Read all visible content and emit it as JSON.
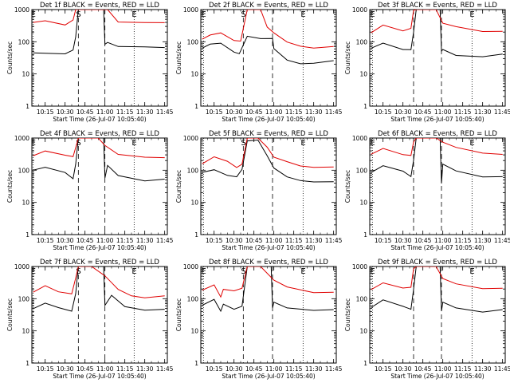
{
  "chart_data": [
    {
      "type": "line",
      "title": "Det 1f BLACK = Events, RED = LLD",
      "xlabel": "Start Time (26-Jul-07 10:05:40)",
      "ylabel": "Counts/sec",
      "scale": "log",
      "ylim": [
        1,
        1000
      ],
      "xlim": [
        "10:05",
        "11:47"
      ],
      "x_ticks": [
        "10:15",
        "10:30",
        "10:45",
        "11:00",
        "11:15",
        "11:30",
        "11:45"
      ],
      "y_ticks": [
        "1",
        "10",
        "100",
        "1000"
      ],
      "markers": [
        {
          "label": "E",
          "x": "10:06",
          "style": "dotted"
        },
        {
          "label": "S",
          "x": "10:40",
          "style": "dashed"
        },
        {
          "label": "",
          "x": "11:00",
          "style": "dashed"
        },
        {
          "label": "E",
          "x": "11:22",
          "style": "dotted"
        }
      ],
      "series": [
        {
          "color": "#000000",
          "x": [
            "10:06",
            "10:15",
            "10:30",
            "10:36",
            "10:38",
            "10:40",
            "10:59",
            "11:00",
            "11:02",
            "11:10",
            "11:30",
            "11:45"
          ],
          "y": [
            45,
            42,
            40,
            55,
            150,
            1000,
            1000,
            80,
            90,
            70,
            72,
            70
          ]
        },
        {
          "color": "#e00000",
          "x": [
            "10:06",
            "10:15",
            "10:30",
            "10:36",
            "10:38",
            "10:40",
            "11:00",
            "11:02",
            "11:10",
            "11:30",
            "11:45"
          ],
          "y": [
            380,
            450,
            350,
            500,
            1000,
            1000,
            1000,
            1000,
            430,
            420,
            400
          ]
        }
      ]
    },
    {
      "type": "line",
      "title": "Det 2f BLACK = Events, RED = LLD",
      "xlabel": "Start Time (26-Jul-07 10:05:40)",
      "ylabel": "Counts/sec",
      "scale": "log",
      "ylim": [
        1,
        1000
      ],
      "xlim": [
        "10:05",
        "11:47"
      ],
      "x_ticks": [
        "10:15",
        "10:30",
        "10:45",
        "11:00",
        "11:15",
        "11:30",
        "11:45"
      ],
      "y_ticks": [
        "1",
        "10",
        "100",
        "1000"
      ],
      "markers": [
        {
          "label": "E",
          "x": "10:07",
          "style": "dotted"
        },
        {
          "label": "S",
          "x": "10:37",
          "style": "dashed"
        },
        {
          "label": "",
          "x": "10:59",
          "style": "dashed"
        },
        {
          "label": "E",
          "x": "11:22",
          "style": "dotted"
        }
      ],
      "series": [
        {
          "color": "#000000",
          "x": [
            "10:06",
            "10:12",
            "10:20",
            "10:30",
            "10:34",
            "10:40",
            "10:50",
            "10:59",
            "11:00",
            "11:10",
            "11:20",
            "11:30",
            "11:45"
          ],
          "y": [
            60,
            80,
            90,
            50,
            45,
            150,
            120,
            120,
            60,
            28,
            22,
            22,
            25
          ]
        },
        {
          "color": "#e00000",
          "x": [
            "10:06",
            "10:12",
            "10:20",
            "10:30",
            "10:35",
            "10:40",
            "10:50",
            "10:55",
            "11:00",
            "11:10",
            "11:20",
            "11:30",
            "11:45"
          ],
          "y": [
            120,
            170,
            200,
            110,
            100,
            1000,
            1000,
            300,
            200,
            100,
            70,
            60,
            70
          ]
        }
      ]
    },
    {
      "type": "line",
      "title": "Det 3f BLACK = Events, RED = LLD",
      "xlabel": "Start Time (26-Jul-07 10:05:40)",
      "ylabel": "Counts/sec",
      "scale": "log",
      "ylim": [
        1,
        1000
      ],
      "xlim": [
        "10:05",
        "11:47"
      ],
      "x_ticks": [
        "10:15",
        "10:30",
        "10:45",
        "11:00",
        "11:15",
        "11:30",
        "11:45"
      ],
      "y_ticks": [
        "1",
        "10",
        "100",
        "1000"
      ],
      "markers": [
        {
          "label": "E",
          "x": "10:07",
          "style": "dotted"
        },
        {
          "label": "",
          "x": "10:38",
          "style": "dashed"
        },
        {
          "label": "",
          "x": "10:59",
          "style": "dashed"
        },
        {
          "label": "E",
          "x": "11:22",
          "style": "dotted"
        }
      ],
      "series": [
        {
          "color": "#000000",
          "x": [
            "10:06",
            "10:15",
            "10:30",
            "10:36",
            "10:38",
            "10:40",
            "10:58",
            "10:59",
            "11:00",
            "11:10",
            "11:30",
            "11:45"
          ],
          "y": [
            60,
            90,
            60,
            60,
            200,
            1000,
            1000,
            50,
            60,
            40,
            35,
            40
          ]
        },
        {
          "color": "#e00000",
          "x": [
            "10:06",
            "10:15",
            "10:30",
            "10:36",
            "10:38",
            "10:40",
            "10:55",
            "11:00",
            "11:10",
            "11:30",
            "11:45"
          ],
          "y": [
            200,
            350,
            220,
            250,
            900,
            1000,
            1000,
            400,
            300,
            200,
            200
          ]
        }
      ]
    },
    {
      "type": "line",
      "title": "Det 4f BLACK = Events, RED = LLD",
      "xlabel": "Start Time (26-Jul-07 10:05:40)",
      "ylabel": "Counts/sec",
      "scale": "log",
      "ylim": [
        1,
        1000
      ],
      "xlim": [
        "10:05",
        "11:47"
      ],
      "x_ticks": [
        "10:15",
        "10:30",
        "10:45",
        "11:00",
        "11:15",
        "11:30",
        "11:45"
      ],
      "y_ticks": [
        "1",
        "10",
        "100",
        "1000"
      ],
      "markers": [
        {
          "label": "E",
          "x": "10:06",
          "style": "dotted"
        },
        {
          "label": "S",
          "x": "10:40",
          "style": "dashed"
        },
        {
          "label": "",
          "x": "11:00",
          "style": "dashed"
        },
        {
          "label": "E",
          "x": "11:22",
          "style": "dotted"
        }
      ],
      "series": [
        {
          "color": "#000000",
          "x": [
            "10:06",
            "10:15",
            "10:30",
            "10:36",
            "10:38",
            "10:40",
            "10:59",
            "11:00",
            "11:02",
            "11:10",
            "11:30",
            "11:45"
          ],
          "y": [
            100,
            130,
            90,
            55,
            150,
            1000,
            1000,
            60,
            150,
            70,
            45,
            50
          ]
        },
        {
          "color": "#e00000",
          "x": [
            "10:06",
            "10:15",
            "10:30",
            "10:36",
            "10:38",
            "10:40",
            "10:55",
            "11:00",
            "11:10",
            "11:30",
            "11:45"
          ],
          "y": [
            300,
            400,
            280,
            250,
            500,
            1000,
            1000,
            600,
            300,
            240,
            240
          ]
        }
      ]
    },
    {
      "type": "line",
      "title": "Det 5f BLACK = Events, RED = LLD",
      "xlabel": "Start Time (26-Jul-07 10:05:40)",
      "ylabel": "Counts/sec",
      "scale": "log",
      "ylim": [
        1,
        1000
      ],
      "xlim": [
        "10:05",
        "11:47"
      ],
      "x_ticks": [
        "10:15",
        "10:30",
        "10:45",
        "11:00",
        "11:15",
        "11:30",
        "11:45"
      ],
      "y_ticks": [
        "1",
        "10",
        "100",
        "1000"
      ],
      "markers": [
        {
          "label": "",
          "x": "10:07",
          "style": "dotted"
        },
        {
          "label": "S",
          "x": "10:37",
          "style": "dashed"
        },
        {
          "label": "",
          "x": "10:59",
          "style": "dashed"
        },
        {
          "label": "E",
          "x": "11:22",
          "style": "dotted"
        }
      ],
      "series": [
        {
          "color": "#000000",
          "x": [
            "10:06",
            "10:15",
            "10:25",
            "10:32",
            "10:36",
            "10:40",
            "10:48",
            "10:55",
            "11:00",
            "11:10",
            "11:20",
            "11:30",
            "11:45"
          ],
          "y": [
            90,
            110,
            70,
            60,
            100,
            800,
            900,
            300,
            120,
            60,
            45,
            42,
            45
          ]
        },
        {
          "color": "#e00000",
          "x": [
            "10:06",
            "10:15",
            "10:25",
            "10:32",
            "10:36",
            "10:40",
            "10:48",
            "10:55",
            "11:00",
            "11:10",
            "11:20",
            "11:30",
            "11:45"
          ],
          "y": [
            160,
            250,
            180,
            120,
            160,
            1000,
            1000,
            500,
            240,
            180,
            140,
            130,
            130
          ]
        }
      ]
    },
    {
      "type": "line",
      "title": "Det 6f BLACK = Events, RED = LLD",
      "xlabel": "Start Time (26-Jul-07 10:05:40)",
      "ylabel": "Counts/sec",
      "scale": "log",
      "ylim": [
        1,
        1000
      ],
      "xlim": [
        "10:05",
        "11:47"
      ],
      "x_ticks": [
        "10:15",
        "10:30",
        "10:45",
        "11:00",
        "11:15",
        "11:30",
        "11:45"
      ],
      "y_ticks": [
        "1",
        "10",
        "100",
        "1000"
      ],
      "markers": [
        {
          "label": "E",
          "x": "10:07",
          "style": "dotted"
        },
        {
          "label": "",
          "x": "10:38",
          "style": "dashed"
        },
        {
          "label": "",
          "x": "10:59",
          "style": "dashed"
        },
        {
          "label": "E",
          "x": "11:22",
          "style": "dotted"
        }
      ],
      "series": [
        {
          "color": "#000000",
          "x": [
            "10:06",
            "10:15",
            "10:30",
            "10:36",
            "10:38",
            "10:40",
            "10:58",
            "10:59",
            "11:00",
            "11:10",
            "11:30",
            "11:45"
          ],
          "y": [
            90,
            140,
            90,
            60,
            200,
            1000,
            1000,
            40,
            150,
            90,
            60,
            65
          ]
        },
        {
          "color": "#e00000",
          "x": [
            "10:06",
            "10:15",
            "10:30",
            "10:36",
            "10:38",
            "10:40",
            "10:55",
            "11:00",
            "11:10",
            "11:30",
            "11:45"
          ],
          "y": [
            300,
            450,
            300,
            300,
            800,
            1000,
            1000,
            700,
            500,
            350,
            330
          ]
        }
      ]
    },
    {
      "type": "line",
      "title": "Det 7f BLACK = Events, RED = LLD",
      "xlabel": "Start Time (26-Jul-07 10:05:40)",
      "ylabel": "Counts/sec",
      "scale": "log",
      "ylim": [
        1,
        1000
      ],
      "xlim": [
        "10:05",
        "11:47"
      ],
      "x_ticks": [
        "10:15",
        "10:30",
        "10:45",
        "11:00",
        "11:15",
        "11:30",
        "11:45"
      ],
      "y_ticks": [
        "1",
        "10",
        "100",
        "1000"
      ],
      "markers": [
        {
          "label": "E",
          "x": "10:06",
          "style": "dotted"
        },
        {
          "label": "S",
          "x": "10:40",
          "style": "dashed"
        },
        {
          "label": "",
          "x": "11:00",
          "style": "dashed"
        },
        {
          "label": "E",
          "x": "11:22",
          "style": "dotted"
        }
      ],
      "series": [
        {
          "color": "#000000",
          "x": [
            "10:06",
            "10:15",
            "10:25",
            "10:35",
            "10:38",
            "10:40",
            "10:59",
            "11:00",
            "11:05",
            "11:15",
            "11:30",
            "11:45"
          ],
          "y": [
            50,
            70,
            50,
            40,
            150,
            1000,
            1000,
            60,
            120,
            55,
            45,
            50
          ]
        },
        {
          "color": "#e00000",
          "x": [
            "10:06",
            "10:15",
            "10:25",
            "10:35",
            "10:38",
            "10:40",
            "10:50",
            "11:00",
            "11:10",
            "11:20",
            "11:30",
            "11:45"
          ],
          "y": [
            150,
            250,
            170,
            150,
            450,
            1000,
            1000,
            500,
            200,
            130,
            110,
            120
          ]
        }
      ]
    },
    {
      "type": "line",
      "title": "Det 8f BLACK = Events, RED = LLD",
      "xlabel": "Start Time (26-Jul-07 10:05:40)",
      "ylabel": "Counts/sec",
      "scale": "log",
      "ylim": [
        1,
        1000
      ],
      "xlim": [
        "10:05",
        "11:47"
      ],
      "x_ticks": [
        "10:15",
        "10:30",
        "10:45",
        "11:00",
        "11:15",
        "11:30",
        "11:45"
      ],
      "y_ticks": [
        "1",
        "10",
        "100",
        "1000"
      ],
      "markers": [
        {
          "label": "E",
          "x": "10:07",
          "style": "dotted"
        },
        {
          "label": "S",
          "x": "10:37",
          "style": "dashed"
        },
        {
          "label": "",
          "x": "10:59",
          "style": "dashed"
        },
        {
          "label": "E",
          "x": "11:22",
          "style": "dotted"
        }
      ],
      "series": [
        {
          "color": "#000000",
          "x": [
            "10:06",
            "10:15",
            "10:20",
            "10:22",
            "10:30",
            "10:36",
            "10:40",
            "10:58",
            "10:59",
            "11:00",
            "11:10",
            "11:30",
            "11:45"
          ],
          "y": [
            60,
            90,
            40,
            70,
            50,
            60,
            1000,
            1000,
            50,
            80,
            55,
            45,
            45
          ]
        },
        {
          "color": "#e00000",
          "x": [
            "10:06",
            "10:15",
            "10:20",
            "10:22",
            "10:30",
            "10:36",
            "10:40",
            "10:50",
            "11:00",
            "11:10",
            "11:30",
            "11:45"
          ],
          "y": [
            180,
            280,
            120,
            200,
            170,
            200,
            1000,
            1000,
            400,
            240,
            150,
            150
          ]
        }
      ]
    },
    {
      "type": "line",
      "title": "Det 9f BLACK = Events, RED = LLD",
      "xlabel": "Start Time (26-Jul-07 10:05:40)",
      "ylabel": "Counts/sec",
      "scale": "log",
      "ylim": [
        1,
        1000
      ],
      "xlim": [
        "10:05",
        "11:47"
      ],
      "x_ticks": [
        "10:15",
        "10:30",
        "10:45",
        "11:00",
        "11:15",
        "11:30",
        "11:45"
      ],
      "y_ticks": [
        "1",
        "10",
        "100",
        "1000"
      ],
      "markers": [
        {
          "label": "E",
          "x": "10:07",
          "style": "dotted"
        },
        {
          "label": "",
          "x": "10:38",
          "style": "dashed"
        },
        {
          "label": "",
          "x": "10:59",
          "style": "dashed"
        },
        {
          "label": "E",
          "x": "11:22",
          "style": "dotted"
        }
      ],
      "series": [
        {
          "color": "#000000",
          "x": [
            "10:06",
            "10:15",
            "10:30",
            "10:36",
            "10:38",
            "10:40",
            "10:58",
            "10:59",
            "11:00",
            "11:10",
            "11:30",
            "11:45"
          ],
          "y": [
            50,
            90,
            60,
            50,
            200,
            1000,
            1000,
            40,
            80,
            55,
            40,
            45
          ]
        },
        {
          "color": "#e00000",
          "x": [
            "10:06",
            "10:15",
            "10:30",
            "10:36",
            "10:38",
            "10:40",
            "10:55",
            "11:00",
            "11:10",
            "11:30",
            "11:45"
          ],
          "y": [
            200,
            330,
            220,
            220,
            800,
            1000,
            1000,
            450,
            300,
            200,
            200
          ]
        }
      ]
    }
  ]
}
